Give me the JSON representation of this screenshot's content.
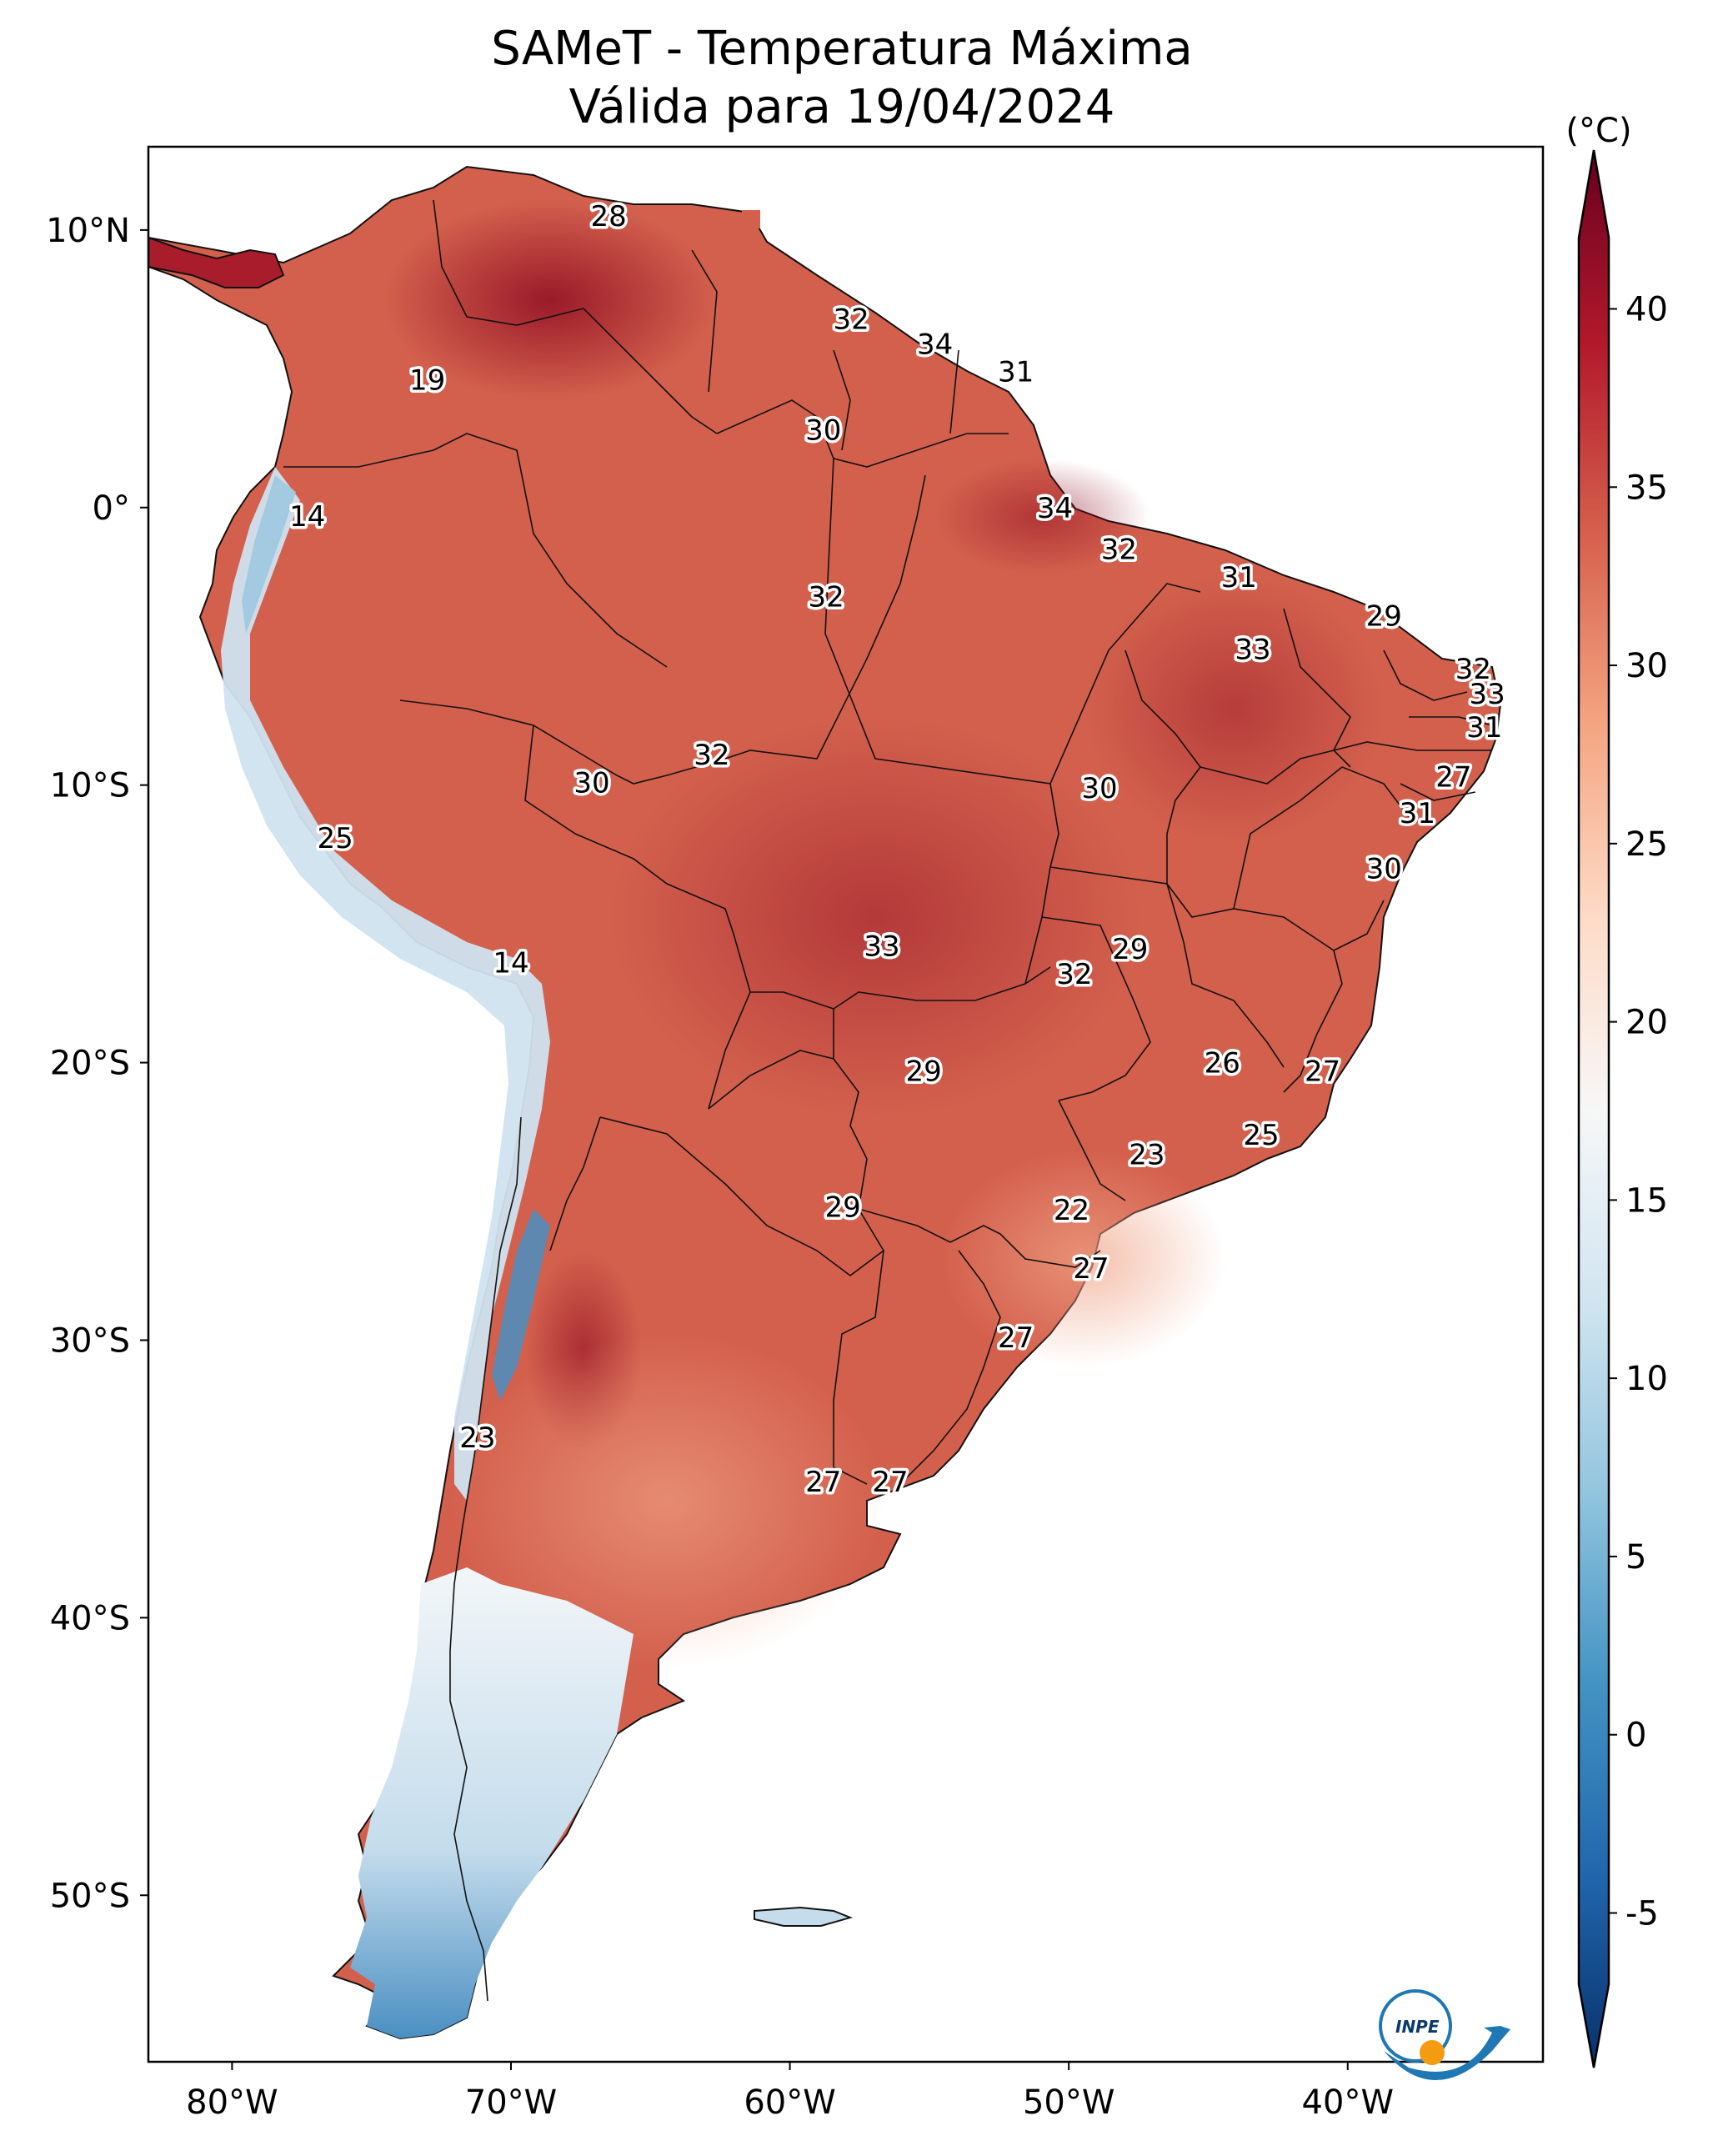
{
  "title": {
    "line1": "SAMeT - Temperatura Máxima",
    "line2": "Válida para 19/04/2024"
  },
  "colorbar": {
    "unit": "(°C)",
    "min": -7,
    "max": 42,
    "ticks": [
      -5,
      0,
      5,
      10,
      15,
      20,
      25,
      30,
      35,
      40
    ],
    "colors": [
      "#08306b",
      "#2166ac",
      "#4393c3",
      "#92c5de",
      "#d1e5f0",
      "#f7f7f7",
      "#fddbc7",
      "#f4a582",
      "#d6604d",
      "#b2182b",
      "#67001f"
    ]
  },
  "axes": {
    "lon_ticks": [
      "80°W",
      "70°W",
      "60°W",
      "50°W",
      "40°W"
    ],
    "lat_ticks": [
      "10°N",
      "0°",
      "10°S",
      "20°S",
      "30°S",
      "40°S",
      "50°S"
    ]
  },
  "map": {
    "lon_range": [
      -83,
      -33
    ],
    "lat_range": [
      -56,
      13
    ],
    "labels": [
      {
        "text": "28",
        "lon": -66.5,
        "lat": 10.5
      },
      {
        "text": "32",
        "lon": -57.8,
        "lat": 6.8
      },
      {
        "text": "34",
        "lon": -54.8,
        "lat": 5.9
      },
      {
        "text": "31",
        "lon": -51.9,
        "lat": 4.9
      },
      {
        "text": "19",
        "lon": -73.0,
        "lat": 4.6
      },
      {
        "text": "30",
        "lon": -58.8,
        "lat": 2.8
      },
      {
        "text": "14",
        "lon": -77.3,
        "lat": -0.3
      },
      {
        "text": "34",
        "lon": -50.5,
        "lat": 0.0
      },
      {
        "text": "32",
        "lon": -48.2,
        "lat": -1.5
      },
      {
        "text": "31",
        "lon": -43.9,
        "lat": -2.5
      },
      {
        "text": "32",
        "lon": -58.7,
        "lat": -3.2
      },
      {
        "text": "29",
        "lon": -38.7,
        "lat": -3.9
      },
      {
        "text": "33",
        "lon": -43.4,
        "lat": -5.1
      },
      {
        "text": "32",
        "lon": -35.5,
        "lat": -5.8
      },
      {
        "text": "33",
        "lon": -35.0,
        "lat": -6.7
      },
      {
        "text": "31",
        "lon": -35.1,
        "lat": -7.9
      },
      {
        "text": "32",
        "lon": -62.8,
        "lat": -8.9
      },
      {
        "text": "30",
        "lon": -67.1,
        "lat": -9.9
      },
      {
        "text": "30",
        "lon": -48.9,
        "lat": -10.1
      },
      {
        "text": "27",
        "lon": -36.2,
        "lat": -9.7
      },
      {
        "text": "31",
        "lon": -37.5,
        "lat": -11.0
      },
      {
        "text": "25",
        "lon": -76.3,
        "lat": -11.9
      },
      {
        "text": "30",
        "lon": -38.7,
        "lat": -13.0
      },
      {
        "text": "14",
        "lon": -70.0,
        "lat": -16.4
      },
      {
        "text": "33",
        "lon": -56.7,
        "lat": -15.8
      },
      {
        "text": "29",
        "lon": -47.8,
        "lat": -15.9
      },
      {
        "text": "32",
        "lon": -49.8,
        "lat": -16.8
      },
      {
        "text": "26",
        "lon": -44.5,
        "lat": -20.0
      },
      {
        "text": "29",
        "lon": -55.2,
        "lat": -20.3
      },
      {
        "text": "27",
        "lon": -40.9,
        "lat": -20.3
      },
      {
        "text": "25",
        "lon": -43.1,
        "lat": -22.6
      },
      {
        "text": "23",
        "lon": -47.2,
        "lat": -23.3
      },
      {
        "text": "29",
        "lon": -58.1,
        "lat": -25.2
      },
      {
        "text": "22",
        "lon": -49.9,
        "lat": -25.3
      },
      {
        "text": "27",
        "lon": -49.2,
        "lat": -27.4
      },
      {
        "text": "27",
        "lon": -51.9,
        "lat": -29.9
      },
      {
        "text": "23",
        "lon": -71.2,
        "lat": -33.5
      },
      {
        "text": "27",
        "lon": -58.8,
        "lat": -35.1
      },
      {
        "text": "27",
        "lon": -56.4,
        "lat": -35.1
      }
    ]
  },
  "logo": {
    "text": "INPE"
  }
}
